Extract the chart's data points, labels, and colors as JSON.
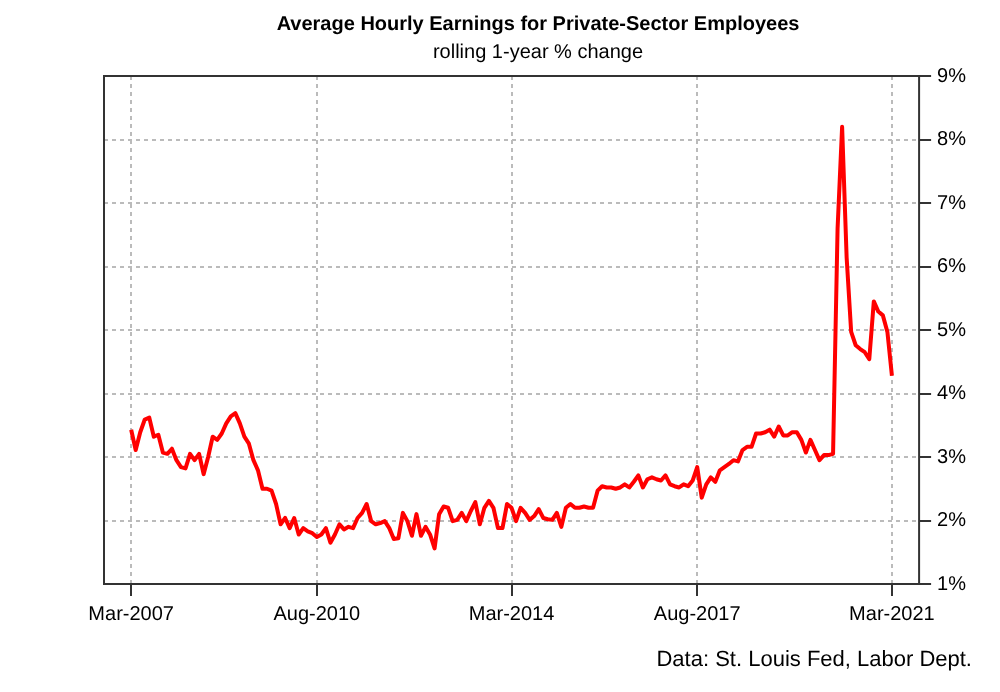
{
  "chart_data": {
    "type": "line",
    "title": "Average Hourly Earnings for Private-Sector Employees",
    "subtitle": "rolling 1-year % change",
    "annotations": [
      "Data: St. Louis Fed, Labor Dept."
    ],
    "x": [
      "2007-03",
      "2007-04",
      "2007-05",
      "2007-06",
      "2007-07",
      "2007-08",
      "2007-09",
      "2007-10",
      "2007-11",
      "2007-12",
      "2008-01",
      "2008-02",
      "2008-03",
      "2008-04",
      "2008-05",
      "2008-06",
      "2008-07",
      "2008-08",
      "2008-09",
      "2008-10",
      "2008-11",
      "2008-12",
      "2009-01",
      "2009-02",
      "2009-03",
      "2009-04",
      "2009-05",
      "2009-06",
      "2009-07",
      "2009-08",
      "2009-09",
      "2009-10",
      "2009-11",
      "2009-12",
      "2010-01",
      "2010-02",
      "2010-03",
      "2010-04",
      "2010-05",
      "2010-06",
      "2010-07",
      "2010-08",
      "2010-09",
      "2010-10",
      "2010-11",
      "2010-12",
      "2011-01",
      "2011-02",
      "2011-03",
      "2011-04",
      "2011-05",
      "2011-06",
      "2011-07",
      "2011-08",
      "2011-09",
      "2011-10",
      "2011-11",
      "2011-12",
      "2012-01",
      "2012-02",
      "2012-03",
      "2012-04",
      "2012-05",
      "2012-06",
      "2012-07",
      "2012-08",
      "2012-09",
      "2012-10",
      "2012-11",
      "2012-12",
      "2013-01",
      "2013-02",
      "2013-03",
      "2013-04",
      "2013-05",
      "2013-06",
      "2013-07",
      "2013-08",
      "2013-09",
      "2013-10",
      "2013-11",
      "2013-12",
      "2014-01",
      "2014-02",
      "2014-03",
      "2014-04",
      "2014-05",
      "2014-06",
      "2014-07",
      "2014-08",
      "2014-09",
      "2014-10",
      "2014-11",
      "2014-12",
      "2015-01",
      "2015-02",
      "2015-03",
      "2015-04",
      "2015-05",
      "2015-06",
      "2015-07",
      "2015-08",
      "2015-09",
      "2015-10",
      "2015-11",
      "2015-12",
      "2016-01",
      "2016-02",
      "2016-03",
      "2016-04",
      "2016-05",
      "2016-06",
      "2016-07",
      "2016-08",
      "2016-09",
      "2016-10",
      "2016-11",
      "2016-12",
      "2017-01",
      "2017-02",
      "2017-03",
      "2017-04",
      "2017-05",
      "2017-06",
      "2017-07",
      "2017-08",
      "2017-09",
      "2017-10",
      "2017-11",
      "2017-12",
      "2018-01",
      "2018-02",
      "2018-03",
      "2018-04",
      "2018-05",
      "2018-06",
      "2018-07",
      "2018-08",
      "2018-09",
      "2018-10",
      "2018-11",
      "2018-12",
      "2019-01",
      "2019-02",
      "2019-03",
      "2019-04",
      "2019-05",
      "2019-06",
      "2019-07",
      "2019-08",
      "2019-09",
      "2019-10",
      "2019-11",
      "2019-12",
      "2020-01",
      "2020-02",
      "2020-03",
      "2020-04",
      "2020-05",
      "2020-06",
      "2020-07",
      "2020-08",
      "2020-09",
      "2020-10",
      "2020-11",
      "2020-12",
      "2021-01",
      "2021-02",
      "2021-03"
    ],
    "series": [
      {
        "color": "#ff0000",
        "values": [
          3.43,
          3.11,
          3.39,
          3.59,
          3.62,
          3.32,
          3.35,
          3.07,
          3.05,
          3.13,
          2.95,
          2.84,
          2.82,
          3.05,
          2.95,
          3.05,
          2.73,
          3.0,
          3.32,
          3.27,
          3.37,
          3.53,
          3.64,
          3.69,
          3.53,
          3.32,
          3.21,
          2.95,
          2.79,
          2.5,
          2.5,
          2.47,
          2.26,
          1.94,
          2.04,
          1.88,
          2.04,
          1.78,
          1.88,
          1.83,
          1.8,
          1.74,
          1.78,
          1.88,
          1.65,
          1.78,
          1.94,
          1.86,
          1.9,
          1.88,
          2.04,
          2.12,
          2.26,
          1.99,
          1.94,
          1.96,
          1.99,
          1.88,
          1.71,
          1.72,
          2.12,
          1.99,
          1.76,
          2.1,
          1.76,
          1.9,
          1.78,
          1.56,
          2.1,
          2.22,
          2.2,
          1.99,
          2.01,
          2.12,
          1.99,
          2.15,
          2.29,
          1.94,
          2.2,
          2.31,
          2.2,
          1.88,
          1.88,
          2.26,
          2.2,
          1.99,
          2.2,
          2.12,
          2.01,
          2.07,
          2.18,
          2.04,
          2.02,
          2.01,
          2.12,
          1.9,
          2.2,
          2.26,
          2.2,
          2.2,
          2.22,
          2.2,
          2.2,
          2.47,
          2.54,
          2.52,
          2.52,
          2.5,
          2.52,
          2.57,
          2.52,
          2.61,
          2.71,
          2.52,
          2.65,
          2.68,
          2.65,
          2.63,
          2.71,
          2.57,
          2.54,
          2.52,
          2.57,
          2.54,
          2.63,
          2.84,
          2.36,
          2.57,
          2.68,
          2.61,
          2.79,
          2.84,
          2.89,
          2.95,
          2.93,
          3.11,
          3.16,
          3.16,
          3.37,
          3.37,
          3.39,
          3.43,
          3.32,
          3.48,
          3.34,
          3.34,
          3.39,
          3.39,
          3.27,
          3.07,
          3.27,
          3.11,
          2.95,
          3.03,
          3.03,
          3.05,
          6.6,
          8.2,
          6.14,
          4.97,
          4.76,
          4.7,
          4.65,
          4.54,
          5.45,
          5.29,
          5.23,
          4.97,
          4.28
        ]
      }
    ],
    "xlim": [
      "2006-09",
      "2021-09"
    ],
    "xticks": [
      {
        "value": "2007-03",
        "label": "Mar-2007"
      },
      {
        "value": "2010-08",
        "label": "Aug-2010"
      },
      {
        "value": "2014-03",
        "label": "Mar-2014"
      },
      {
        "value": "2017-08",
        "label": "Aug-2017"
      },
      {
        "value": "2021-03",
        "label": "Mar-2021"
      }
    ],
    "ylim": [
      1,
      9
    ],
    "yticks": [
      {
        "value": 1,
        "label": "1%"
      },
      {
        "value": 2,
        "label": "2%"
      },
      {
        "value": 3,
        "label": "3%"
      },
      {
        "value": 4,
        "label": "4%"
      },
      {
        "value": 5,
        "label": "5%"
      },
      {
        "value": 6,
        "label": "6%"
      },
      {
        "value": 7,
        "label": "7%"
      },
      {
        "value": 8,
        "label": "8%"
      },
      {
        "value": 9,
        "label": "9%"
      }
    ],
    "grid": true,
    "legend": false,
    "marker": "none",
    "line_style": "solid"
  }
}
